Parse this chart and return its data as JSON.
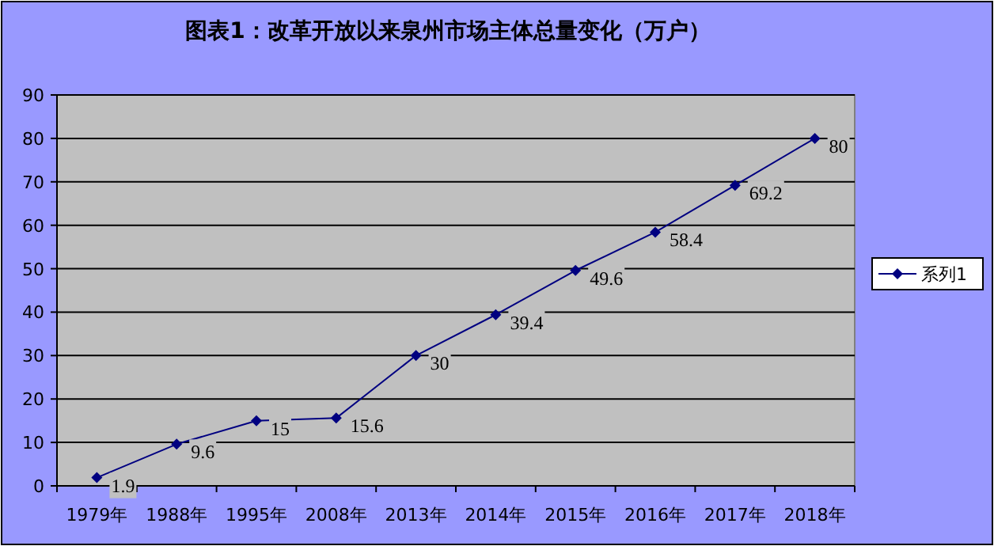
{
  "chart_data": {
    "type": "line",
    "title": "图表1：改革开放以来泉州市场主体总量变化（万户）",
    "categories": [
      "1979年",
      "1988年",
      "1995年",
      "2008年",
      "2013年",
      "2014年",
      "2015年",
      "2016年",
      "2017年",
      "2018年"
    ],
    "series": [
      {
        "name": "系列1",
        "color": "#000080",
        "values": [
          1.9,
          9.6,
          15,
          15.6,
          30,
          39.4,
          49.6,
          58.4,
          69.2,
          80
        ]
      }
    ],
    "ylim": [
      0,
      90
    ],
    "yticks": [
      0,
      10,
      20,
      30,
      40,
      50,
      60,
      70,
      80,
      90
    ],
    "grid": "y",
    "legend": "right",
    "marker": "diamond",
    "line_style": "solid",
    "data_labels": true
  }
}
